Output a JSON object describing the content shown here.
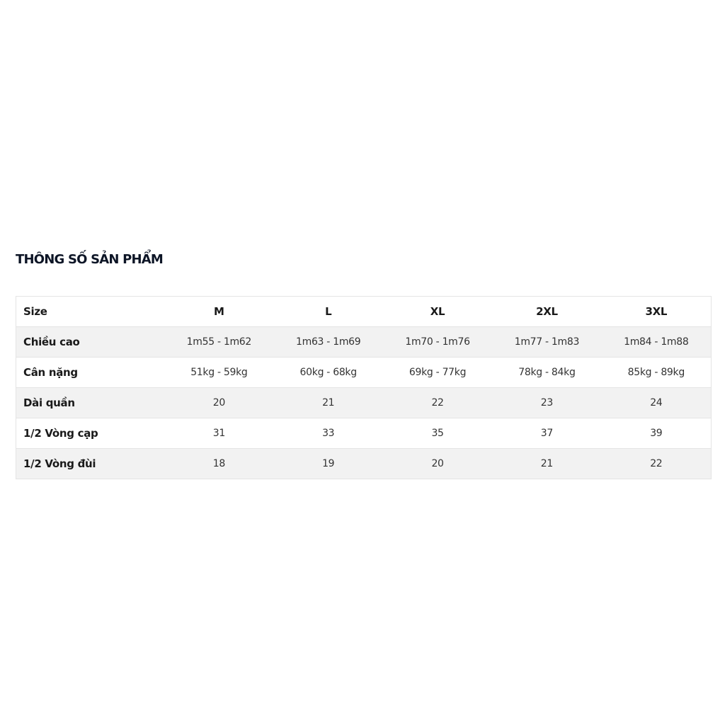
{
  "title": "THÔNG SỐ SẢN PHẨM",
  "table": {
    "header": {
      "label": "Size",
      "values": [
        "M",
        "L",
        "XL",
        "2XL",
        "3XL"
      ]
    },
    "rows": [
      {
        "label": "Chiều cao",
        "values": [
          "1m55 - 1m62",
          "1m63 - 1m69",
          "1m70 - 1m76",
          "1m77 - 1m83",
          "1m84 - 1m88"
        ]
      },
      {
        "label": "Cân nặng",
        "values": [
          "51kg - 59kg",
          "60kg - 68kg",
          "69kg - 77kg",
          "78kg - 84kg",
          "85kg - 89kg"
        ]
      },
      {
        "label": "Dài quần",
        "values": [
          "20",
          "21",
          "22",
          "23",
          "24"
        ]
      },
      {
        "label": "1/2 Vòng cạp",
        "values": [
          "31",
          "33",
          "35",
          "37",
          "39"
        ]
      },
      {
        "label": "1/2 Vòng đùi",
        "values": [
          "18",
          "19",
          "20",
          "21",
          "22"
        ]
      }
    ]
  }
}
